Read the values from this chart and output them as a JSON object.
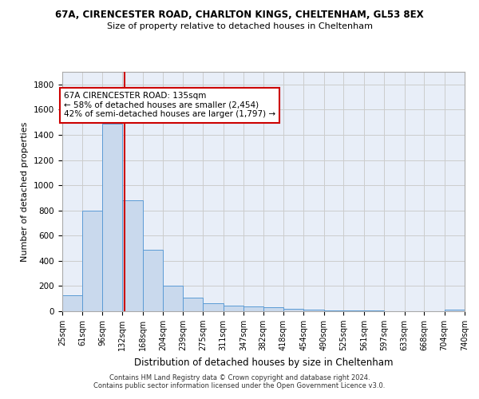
{
  "title1": "67A, CIRENCESTER ROAD, CHARLTON KINGS, CHELTENHAM, GL53 8EX",
  "title2": "Size of property relative to detached houses in Cheltenham",
  "xlabel": "Distribution of detached houses by size in Cheltenham",
  "ylabel": "Number of detached properties",
  "bar_color": "#c9d9ed",
  "bar_edge_color": "#5b9bd5",
  "property_size": 135,
  "property_line_color": "#cc0000",
  "annotation_text": "67A CIRENCESTER ROAD: 135sqm\n← 58% of detached houses are smaller (2,454)\n42% of semi-detached houses are larger (1,797) →",
  "annotation_box_color": "white",
  "annotation_box_edge": "#cc0000",
  "grid_color": "#cccccc",
  "background_color": "#e8eef8",
  "footer1": "Contains HM Land Registry data © Crown copyright and database right 2024.",
  "footer2": "Contains public sector information licensed under the Open Government Licence v3.0.",
  "bins": [
    25,
    61,
    96,
    132,
    168,
    204,
    239,
    275,
    311,
    347,
    382,
    418,
    454,
    490,
    525,
    561,
    597,
    633,
    668,
    704,
    740
  ],
  "counts": [
    125,
    800,
    1490,
    880,
    490,
    205,
    105,
    65,
    45,
    35,
    30,
    20,
    15,
    5,
    5,
    5,
    3,
    3,
    3,
    15
  ],
  "ylim": [
    0,
    1900
  ],
  "yticks": [
    0,
    200,
    400,
    600,
    800,
    1000,
    1200,
    1400,
    1600,
    1800
  ]
}
